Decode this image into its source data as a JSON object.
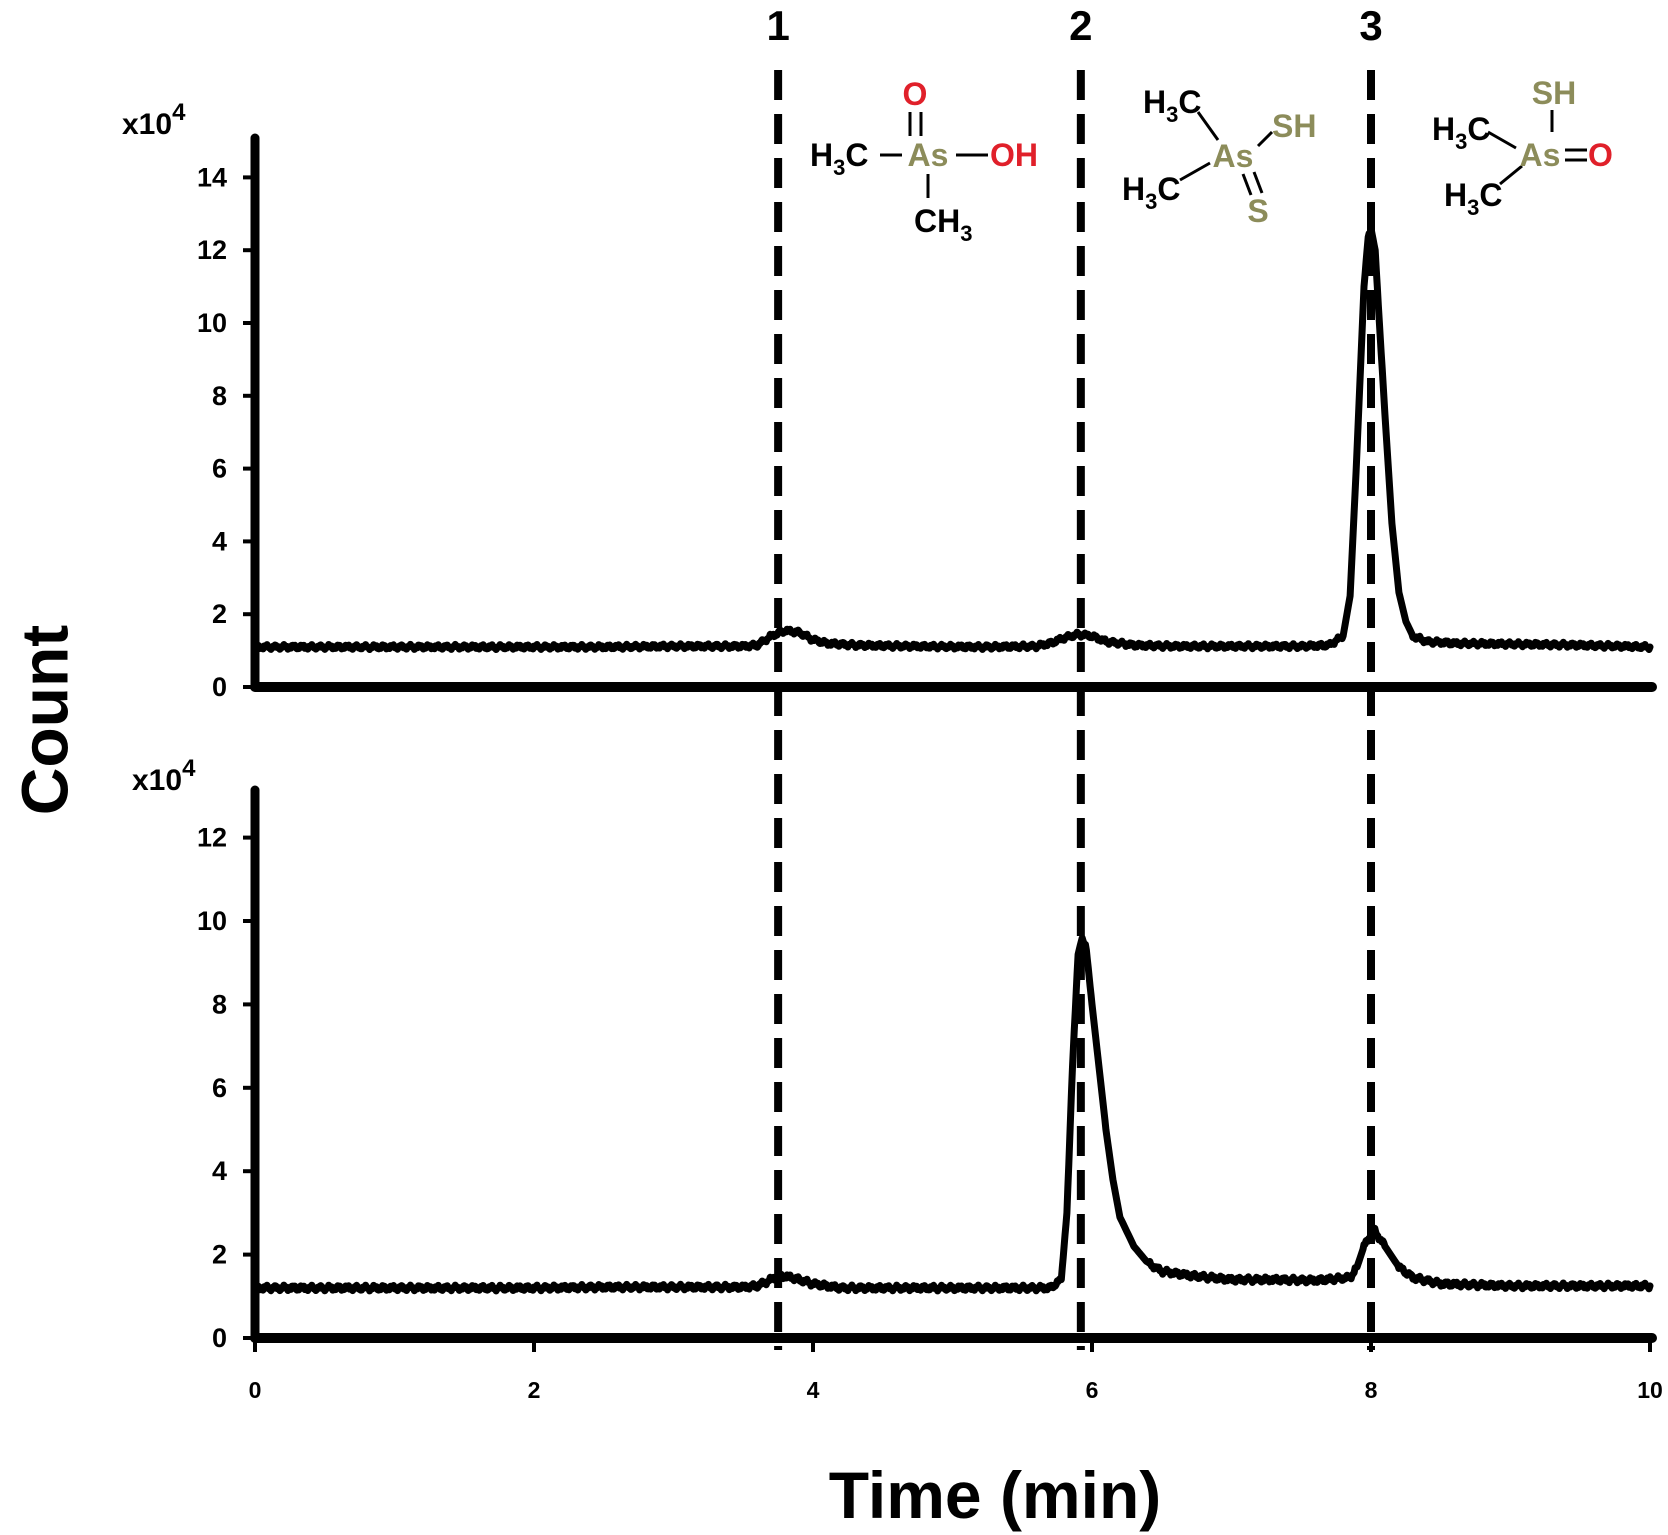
{
  "chart_data": {
    "type": "line",
    "x_axis": {
      "label": "Time (min)",
      "range": [
        0,
        10
      ],
      "ticks": [
        "0",
        "2",
        "4",
        "6",
        "8",
        "10"
      ]
    },
    "y_axis_label": "Count",
    "peak_markers": [
      {
        "label": "1",
        "x": 3.75
      },
      {
        "label": "2",
        "x": 5.92
      },
      {
        "label": "3",
        "x": 8.0
      }
    ],
    "panels": [
      {
        "multiplier": "x10",
        "multiplier_exponent": "4",
        "ylim": [
          0,
          15
        ],
        "yticks": [
          "0",
          "2",
          "4",
          "6",
          "8",
          "10",
          "12",
          "14"
        ],
        "trace": [
          [
            0,
            1.1
          ],
          [
            0.5,
            1.1
          ],
          [
            1,
            1.1
          ],
          [
            1.5,
            1.1
          ],
          [
            2,
            1.1
          ],
          [
            2.5,
            1.1
          ],
          [
            3,
            1.12
          ],
          [
            3.5,
            1.12
          ],
          [
            3.6,
            1.15
          ],
          [
            3.7,
            1.4
          ],
          [
            3.8,
            1.55
          ],
          [
            3.9,
            1.5
          ],
          [
            4.0,
            1.3
          ],
          [
            4.1,
            1.2
          ],
          [
            4.3,
            1.15
          ],
          [
            4.7,
            1.12
          ],
          [
            5.2,
            1.1
          ],
          [
            5.6,
            1.12
          ],
          [
            5.7,
            1.2
          ],
          [
            5.8,
            1.35
          ],
          [
            5.9,
            1.45
          ],
          [
            6.0,
            1.4
          ],
          [
            6.1,
            1.25
          ],
          [
            6.3,
            1.15
          ],
          [
            6.6,
            1.12
          ],
          [
            7.0,
            1.12
          ],
          [
            7.5,
            1.12
          ],
          [
            7.7,
            1.15
          ],
          [
            7.8,
            1.4
          ],
          [
            7.85,
            2.5
          ],
          [
            7.9,
            6.5
          ],
          [
            7.95,
            11.0
          ],
          [
            7.98,
            12.4
          ],
          [
            8.0,
            12.6
          ],
          [
            8.03,
            12.0
          ],
          [
            8.06,
            10.0
          ],
          [
            8.1,
            7.5
          ],
          [
            8.15,
            4.5
          ],
          [
            8.2,
            2.6
          ],
          [
            8.25,
            1.8
          ],
          [
            8.3,
            1.4
          ],
          [
            8.4,
            1.25
          ],
          [
            8.6,
            1.2
          ],
          [
            9.0,
            1.18
          ],
          [
            9.5,
            1.15
          ],
          [
            10.0,
            1.1
          ]
        ]
      },
      {
        "multiplier": "x10",
        "multiplier_exponent": "4",
        "ylim": [
          0,
          13
        ],
        "yticks": [
          "0",
          "2",
          "4",
          "6",
          "8",
          "10",
          "12"
        ],
        "trace": [
          [
            0,
            1.2
          ],
          [
            0.5,
            1.2
          ],
          [
            1,
            1.2
          ],
          [
            1.5,
            1.2
          ],
          [
            2,
            1.2
          ],
          [
            2.5,
            1.22
          ],
          [
            3,
            1.22
          ],
          [
            3.5,
            1.22
          ],
          [
            3.6,
            1.25
          ],
          [
            3.7,
            1.4
          ],
          [
            3.75,
            1.5
          ],
          [
            3.85,
            1.45
          ],
          [
            4.0,
            1.3
          ],
          [
            4.2,
            1.2
          ],
          [
            4.6,
            1.2
          ],
          [
            5.0,
            1.2
          ],
          [
            5.4,
            1.2
          ],
          [
            5.7,
            1.2
          ],
          [
            5.78,
            1.4
          ],
          [
            5.82,
            3.0
          ],
          [
            5.86,
            6.5
          ],
          [
            5.9,
            9.2
          ],
          [
            5.93,
            9.6
          ],
          [
            5.96,
            9.3
          ],
          [
            6.0,
            8.0
          ],
          [
            6.05,
            6.5
          ],
          [
            6.1,
            5.0
          ],
          [
            6.15,
            3.8
          ],
          [
            6.2,
            2.9
          ],
          [
            6.3,
            2.2
          ],
          [
            6.4,
            1.8
          ],
          [
            6.5,
            1.6
          ],
          [
            6.7,
            1.5
          ],
          [
            7.0,
            1.4
          ],
          [
            7.3,
            1.4
          ],
          [
            7.6,
            1.38
          ],
          [
            7.85,
            1.45
          ],
          [
            7.9,
            1.7
          ],
          [
            7.95,
            2.2
          ],
          [
            8.02,
            2.6
          ],
          [
            8.1,
            2.2
          ],
          [
            8.2,
            1.7
          ],
          [
            8.3,
            1.45
          ],
          [
            8.5,
            1.3
          ],
          [
            9.0,
            1.25
          ],
          [
            9.5,
            1.25
          ],
          [
            10.0,
            1.25
          ]
        ]
      }
    ],
    "structures": [
      {
        "peak": "1",
        "top_atom": "O",
        "left_group": "H",
        "left_sub": "3",
        "left_tail": "C",
        "center_atom": "As",
        "right_group": "OH",
        "bottom_group": "CH",
        "bottom_sub": "3"
      },
      {
        "peak": "2",
        "upper_left": "H",
        "upper_left_sub": "3",
        "upper_left_tail": "C",
        "lower_left": "H",
        "lower_left_sub": "3",
        "lower_left_tail": "C",
        "center_atom": "As",
        "right_group": "SH",
        "bottom_atom": "S"
      },
      {
        "peak": "3",
        "top_group": "SH",
        "upper_left": "H",
        "upper_left_sub": "3",
        "upper_left_tail": "C",
        "lower_left": "H",
        "lower_left_sub": "3",
        "lower_left_tail": "C",
        "center_atom": "As",
        "right_atom": "O"
      }
    ],
    "colors": {
      "line": "#000000",
      "oxygen": "#e0202a",
      "arsenic": "#8c8c5a",
      "sulfur": "#8c8c5a",
      "carbon": "#000000"
    }
  }
}
